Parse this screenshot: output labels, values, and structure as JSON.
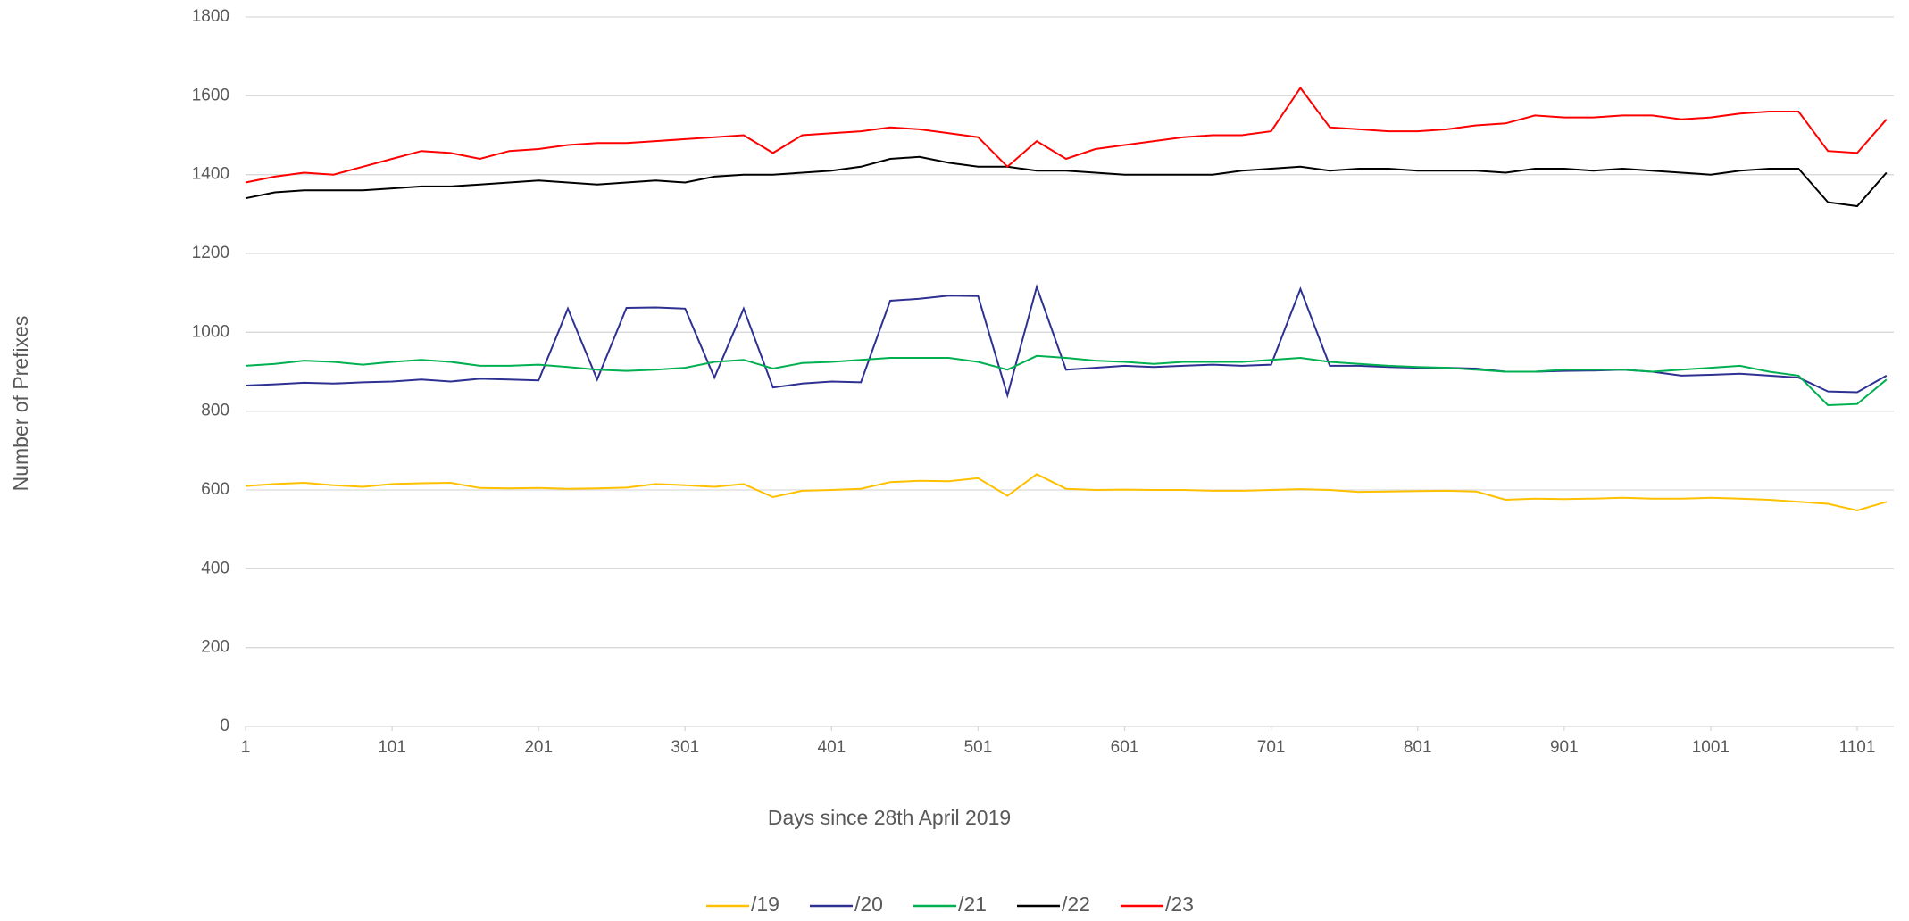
{
  "chart_data": {
    "type": "line",
    "x_label": "Days since 28th April 2019",
    "y_label": "Number of Prefixes",
    "x": [
      1,
      21,
      41,
      61,
      81,
      101,
      121,
      141,
      161,
      181,
      201,
      221,
      241,
      261,
      281,
      301,
      321,
      341,
      361,
      381,
      401,
      421,
      441,
      461,
      481,
      501,
      521,
      541,
      561,
      581,
      601,
      621,
      641,
      661,
      681,
      701,
      721,
      741,
      761,
      781,
      801,
      821,
      841,
      861,
      881,
      901,
      921,
      941,
      961,
      981,
      1001,
      1021,
      1041,
      1061,
      1081,
      1101,
      1121
    ],
    "series": [
      {
        "name": "/19",
        "color": "#ffc000",
        "values": [
          610,
          615,
          618,
          612,
          608,
          615,
          617,
          618,
          605,
          604,
          605,
          603,
          604,
          606,
          615,
          612,
          608,
          615,
          582,
          598,
          600,
          603,
          620,
          623,
          622,
          630,
          585,
          640,
          603,
          600,
          601,
          600,
          600,
          598,
          598,
          600,
          602,
          600,
          595,
          596,
          597,
          598,
          596,
          575,
          578,
          577,
          578,
          580,
          578,
          578,
          580,
          578,
          575,
          570,
          565,
          548,
          570
        ]
      },
      {
        "name": "/20",
        "color": "#2e3192",
        "values": [
          865,
          868,
          872,
          870,
          873,
          875,
          880,
          875,
          882,
          880,
          878,
          1060,
          880,
          1062,
          1063,
          1060,
          885,
          1060,
          860,
          870,
          875,
          873,
          1080,
          1085,
          1093,
          1092,
          840,
          1115,
          905,
          910,
          915,
          912,
          915,
          918,
          915,
          918,
          1110,
          915,
          915,
          912,
          910,
          910,
          908,
          900,
          900,
          902,
          903,
          905,
          900,
          890,
          892,
          895,
          890,
          885,
          850,
          848,
          890
        ]
      },
      {
        "name": "/21",
        "color": "#00b050",
        "values": [
          915,
          920,
          928,
          925,
          918,
          925,
          930,
          925,
          915,
          915,
          918,
          912,
          905,
          902,
          905,
          910,
          925,
          930,
          908,
          922,
          925,
          930,
          935,
          935,
          935,
          925,
          905,
          940,
          935,
          928,
          925,
          920,
          925,
          925,
          925,
          930,
          935,
          925,
          920,
          915,
          912,
          910,
          905,
          900,
          900,
          905,
          905,
          905,
          900,
          905,
          910,
          915,
          900,
          890,
          815,
          818,
          880
        ]
      },
      {
        "name": "/22",
        "color": "#000000",
        "values": [
          1340,
          1355,
          1360,
          1360,
          1360,
          1365,
          1370,
          1370,
          1375,
          1380,
          1385,
          1380,
          1375,
          1380,
          1385,
          1380,
          1395,
          1400,
          1400,
          1405,
          1410,
          1420,
          1440,
          1445,
          1430,
          1420,
          1420,
          1410,
          1410,
          1405,
          1400,
          1400,
          1400,
          1400,
          1410,
          1415,
          1420,
          1410,
          1415,
          1415,
          1410,
          1410,
          1410,
          1405,
          1415,
          1415,
          1410,
          1415,
          1410,
          1405,
          1400,
          1410,
          1415,
          1415,
          1330,
          1320,
          1405
        ]
      },
      {
        "name": "/23",
        "color": "#ff0000",
        "values": [
          1380,
          1395,
          1405,
          1400,
          1420,
          1440,
          1460,
          1455,
          1440,
          1460,
          1465,
          1475,
          1480,
          1480,
          1485,
          1490,
          1495,
          1500,
          1455,
          1500,
          1505,
          1510,
          1520,
          1515,
          1505,
          1495,
          1420,
          1485,
          1440,
          1465,
          1475,
          1485,
          1495,
          1500,
          1500,
          1510,
          1620,
          1520,
          1515,
          1510,
          1510,
          1515,
          1525,
          1530,
          1550,
          1545,
          1545,
          1550,
          1550,
          1540,
          1545,
          1555,
          1560,
          1560,
          1460,
          1455,
          1540
        ]
      }
    ],
    "xlim": [
      1,
      1126
    ],
    "xticks": [
      1,
      101,
      201,
      301,
      401,
      501,
      601,
      701,
      801,
      901,
      1001,
      1101
    ],
    "ylim": [
      0,
      1800
    ],
    "yticks": [
      0,
      200,
      400,
      600,
      800,
      1000,
      1200,
      1400,
      1600,
      1800
    ],
    "grid": true,
    "legend": "bottom"
  }
}
